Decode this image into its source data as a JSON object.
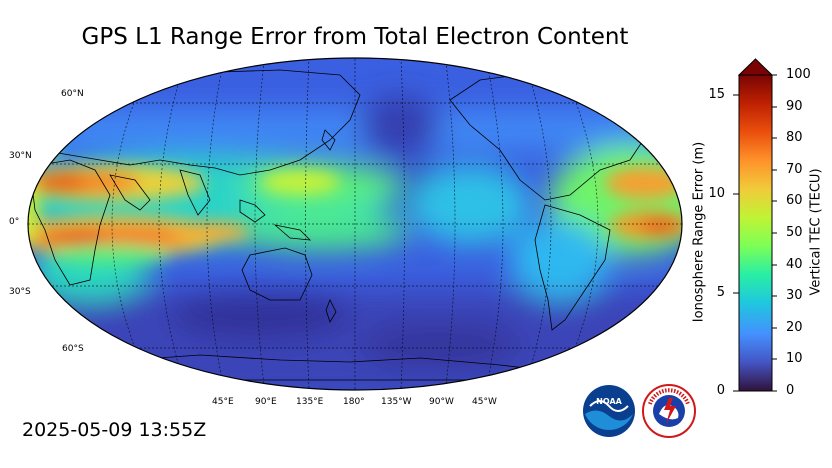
{
  "title": "GPS L1 Range Error from Total Electron Content",
  "timestamp": "2025-05-09 13:55Z",
  "map": {
    "projection": "Robinson",
    "central_longitude": "180°",
    "lat_labels": [
      "60°N",
      "30°N",
      "0°",
      "30°S",
      "60°S"
    ],
    "lon_labels": [
      "45°E",
      "90°E",
      "135°E",
      "180°",
      "135°W",
      "90°W",
      "45°W"
    ],
    "gridlines": "dashed",
    "coastlines": true
  },
  "colorbar": {
    "left_label": "Ionosphere Range Error (m)",
    "right_label": "Vertical TEC (TECU)",
    "left_ticks": [
      "0",
      "5",
      "10",
      "15"
    ],
    "right_ticks": [
      "0",
      "10",
      "20",
      "30",
      "40",
      "50",
      "60",
      "70",
      "80",
      "90",
      "100"
    ],
    "range_tecu": [
      0,
      100
    ],
    "range_m": [
      0,
      16.2
    ],
    "extend": "max",
    "colormap": "turbo",
    "colors": [
      "#30123b",
      "#4454c4",
      "#4490fe",
      "#1fc8de",
      "#29efa2",
      "#7dff56",
      "#c1f334",
      "#f1ca3a",
      "#fe922a",
      "#ea4f0d",
      "#be2102",
      "#7a0403"
    ]
  },
  "logos": {
    "noaa_text": "NOAA",
    "nws_text": "NATIONAL WEATHER SERVICE",
    "noaa_icon": "noaa-logo",
    "nws_icon": "nws-logo"
  }
}
